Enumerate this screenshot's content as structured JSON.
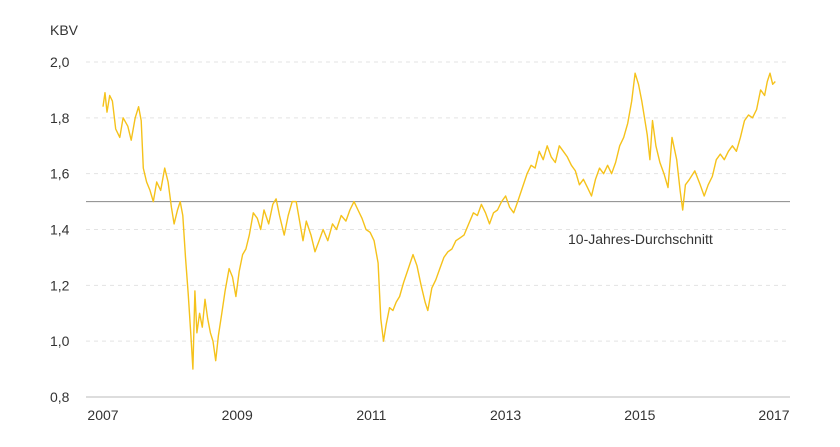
{
  "chart_data": {
    "type": "line",
    "ylabel": "KBV",
    "xlabel": "",
    "xlim": [
      2007,
      2017.2
    ],
    "ylim": [
      0.8,
      2.0
    ],
    "y_ticks": [
      {
        "value": 0.8,
        "label": "0,8"
      },
      {
        "value": 1.0,
        "label": "1,0"
      },
      {
        "value": 1.2,
        "label": "1,2"
      },
      {
        "value": 1.4,
        "label": "1,4"
      },
      {
        "value": 1.6,
        "label": "1,6"
      },
      {
        "value": 1.8,
        "label": "1,8"
      },
      {
        "value": 2.0,
        "label": "2,0"
      }
    ],
    "x_ticks": [
      {
        "value": 2007,
        "label": "2007"
      },
      {
        "value": 2009,
        "label": "2009"
      },
      {
        "value": 2011,
        "label": "2011"
      },
      {
        "value": 2013,
        "label": "2013"
      },
      {
        "value": 2015,
        "label": "2015"
      },
      {
        "value": 2017,
        "label": "2017"
      }
    ],
    "grid": true,
    "colors": {
      "series": "#F5C21B",
      "reference": "#8A8A8A",
      "grid": "#E3E3E3",
      "text": "#333333"
    },
    "reference_line": {
      "value": 1.5,
      "label": "10-Jahres-Durchschnitt"
    },
    "series": [
      {
        "name": "KBV",
        "points": [
          [
            2007.0,
            1.84
          ],
          [
            2007.03,
            1.89
          ],
          [
            2007.06,
            1.82
          ],
          [
            2007.1,
            1.88
          ],
          [
            2007.14,
            1.86
          ],
          [
            2007.19,
            1.76
          ],
          [
            2007.25,
            1.73
          ],
          [
            2007.3,
            1.8
          ],
          [
            2007.37,
            1.77
          ],
          [
            2007.42,
            1.72
          ],
          [
            2007.48,
            1.8
          ],
          [
            2007.53,
            1.84
          ],
          [
            2007.57,
            1.79
          ],
          [
            2007.6,
            1.62
          ],
          [
            2007.65,
            1.57
          ],
          [
            2007.7,
            1.54
          ],
          [
            2007.75,
            1.5
          ],
          [
            2007.8,
            1.57
          ],
          [
            2007.86,
            1.54
          ],
          [
            2007.92,
            1.62
          ],
          [
            2007.97,
            1.57
          ],
          [
            2008.02,
            1.48
          ],
          [
            2008.06,
            1.42
          ],
          [
            2008.11,
            1.47
          ],
          [
            2008.15,
            1.5
          ],
          [
            2008.19,
            1.45
          ],
          [
            2008.23,
            1.3
          ],
          [
            2008.27,
            1.17
          ],
          [
            2008.31,
            1.02
          ],
          [
            2008.34,
            0.9
          ],
          [
            2008.37,
            1.18
          ],
          [
            2008.4,
            1.03
          ],
          [
            2008.44,
            1.1
          ],
          [
            2008.48,
            1.05
          ],
          [
            2008.52,
            1.15
          ],
          [
            2008.56,
            1.08
          ],
          [
            2008.6,
            1.03
          ],
          [
            2008.64,
            1.0
          ],
          [
            2008.68,
            0.93
          ],
          [
            2008.72,
            1.02
          ],
          [
            2008.77,
            1.1
          ],
          [
            2008.82,
            1.18
          ],
          [
            2008.88,
            1.26
          ],
          [
            2008.93,
            1.23
          ],
          [
            2008.98,
            1.16
          ],
          [
            2009.03,
            1.25
          ],
          [
            2009.08,
            1.31
          ],
          [
            2009.13,
            1.33
          ],
          [
            2009.18,
            1.38
          ],
          [
            2009.24,
            1.46
          ],
          [
            2009.3,
            1.44
          ],
          [
            2009.35,
            1.4
          ],
          [
            2009.4,
            1.47
          ],
          [
            2009.47,
            1.42
          ],
          [
            2009.53,
            1.49
          ],
          [
            2009.58,
            1.51
          ],
          [
            2009.63,
            1.45
          ],
          [
            2009.7,
            1.38
          ],
          [
            2009.76,
            1.45
          ],
          [
            2009.82,
            1.5
          ],
          [
            2009.88,
            1.5
          ],
          [
            2009.93,
            1.43
          ],
          [
            2009.98,
            1.36
          ],
          [
            2010.03,
            1.43
          ],
          [
            2010.1,
            1.38
          ],
          [
            2010.16,
            1.32
          ],
          [
            2010.22,
            1.36
          ],
          [
            2010.28,
            1.4
          ],
          [
            2010.35,
            1.36
          ],
          [
            2010.42,
            1.42
          ],
          [
            2010.48,
            1.4
          ],
          [
            2010.55,
            1.45
          ],
          [
            2010.62,
            1.43
          ],
          [
            2010.68,
            1.47
          ],
          [
            2010.74,
            1.5
          ],
          [
            2010.8,
            1.47
          ],
          [
            2010.86,
            1.44
          ],
          [
            2010.92,
            1.4
          ],
          [
            2010.98,
            1.39
          ],
          [
            2011.04,
            1.36
          ],
          [
            2011.1,
            1.28
          ],
          [
            2011.14,
            1.08
          ],
          [
            2011.18,
            1.0
          ],
          [
            2011.22,
            1.06
          ],
          [
            2011.27,
            1.12
          ],
          [
            2011.32,
            1.11
          ],
          [
            2011.37,
            1.14
          ],
          [
            2011.42,
            1.16
          ],
          [
            2011.48,
            1.21
          ],
          [
            2011.55,
            1.26
          ],
          [
            2011.62,
            1.31
          ],
          [
            2011.68,
            1.27
          ],
          [
            2011.74,
            1.2
          ],
          [
            2011.8,
            1.14
          ],
          [
            2011.84,
            1.11
          ],
          [
            2011.9,
            1.19
          ],
          [
            2011.96,
            1.22
          ],
          [
            2012.02,
            1.26
          ],
          [
            2012.08,
            1.3
          ],
          [
            2012.14,
            1.32
          ],
          [
            2012.2,
            1.33
          ],
          [
            2012.26,
            1.36
          ],
          [
            2012.32,
            1.37
          ],
          [
            2012.38,
            1.38
          ],
          [
            2012.45,
            1.42
          ],
          [
            2012.52,
            1.46
          ],
          [
            2012.58,
            1.45
          ],
          [
            2012.64,
            1.49
          ],
          [
            2012.7,
            1.46
          ],
          [
            2012.76,
            1.42
          ],
          [
            2012.82,
            1.46
          ],
          [
            2012.88,
            1.47
          ],
          [
            2012.94,
            1.5
          ],
          [
            2013.0,
            1.52
          ],
          [
            2013.06,
            1.48
          ],
          [
            2013.12,
            1.46
          ],
          [
            2013.18,
            1.5
          ],
          [
            2013.25,
            1.55
          ],
          [
            2013.32,
            1.6
          ],
          [
            2013.38,
            1.63
          ],
          [
            2013.44,
            1.62
          ],
          [
            2013.5,
            1.68
          ],
          [
            2013.56,
            1.65
          ],
          [
            2013.62,
            1.7
          ],
          [
            2013.68,
            1.66
          ],
          [
            2013.74,
            1.64
          ],
          [
            2013.8,
            1.7
          ],
          [
            2013.86,
            1.68
          ],
          [
            2013.92,
            1.66
          ],
          [
            2013.98,
            1.63
          ],
          [
            2014.04,
            1.61
          ],
          [
            2014.1,
            1.56
          ],
          [
            2014.16,
            1.58
          ],
          [
            2014.22,
            1.55
          ],
          [
            2014.28,
            1.52
          ],
          [
            2014.34,
            1.58
          ],
          [
            2014.4,
            1.62
          ],
          [
            2014.46,
            1.6
          ],
          [
            2014.52,
            1.63
          ],
          [
            2014.58,
            1.6
          ],
          [
            2014.64,
            1.64
          ],
          [
            2014.7,
            1.7
          ],
          [
            2014.76,
            1.73
          ],
          [
            2014.82,
            1.78
          ],
          [
            2014.88,
            1.86
          ],
          [
            2014.93,
            1.96
          ],
          [
            2014.98,
            1.92
          ],
          [
            2015.03,
            1.86
          ],
          [
            2015.07,
            1.8
          ],
          [
            2015.11,
            1.74
          ],
          [
            2015.15,
            1.65
          ],
          [
            2015.19,
            1.79
          ],
          [
            2015.24,
            1.7
          ],
          [
            2015.3,
            1.64
          ],
          [
            2015.36,
            1.6
          ],
          [
            2015.42,
            1.55
          ],
          [
            2015.48,
            1.73
          ],
          [
            2015.55,
            1.65
          ],
          [
            2015.6,
            1.54
          ],
          [
            2015.64,
            1.47
          ],
          [
            2015.68,
            1.56
          ],
          [
            2015.74,
            1.58
          ],
          [
            2015.82,
            1.61
          ],
          [
            2015.9,
            1.56
          ],
          [
            2015.96,
            1.52
          ],
          [
            2016.02,
            1.56
          ],
          [
            2016.08,
            1.59
          ],
          [
            2016.14,
            1.65
          ],
          [
            2016.2,
            1.67
          ],
          [
            2016.26,
            1.65
          ],
          [
            2016.32,
            1.68
          ],
          [
            2016.38,
            1.7
          ],
          [
            2016.44,
            1.68
          ],
          [
            2016.5,
            1.73
          ],
          [
            2016.56,
            1.79
          ],
          [
            2016.62,
            1.81
          ],
          [
            2016.68,
            1.8
          ],
          [
            2016.74,
            1.83
          ],
          [
            2016.8,
            1.9
          ],
          [
            2016.86,
            1.88
          ],
          [
            2016.9,
            1.93
          ],
          [
            2016.94,
            1.96
          ],
          [
            2016.98,
            1.92
          ],
          [
            2017.02,
            1.93
          ]
        ]
      }
    ]
  }
}
